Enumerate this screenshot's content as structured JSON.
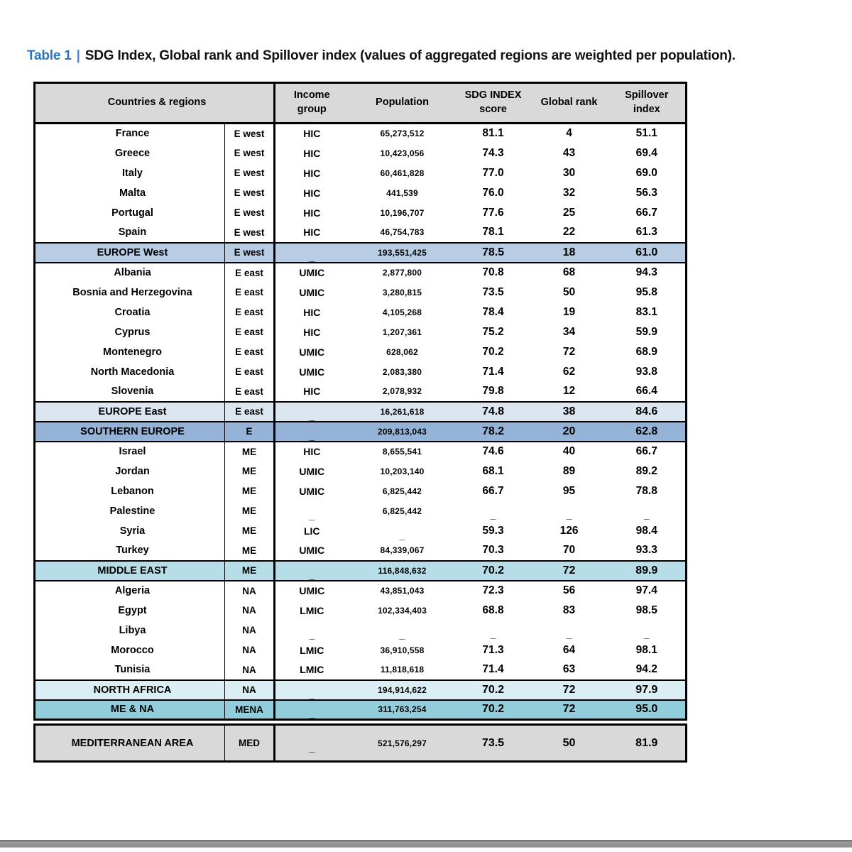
{
  "title": {
    "label": "Table 1",
    "separator": "|",
    "text": "SDG Index, Global rank and Spillover index (values of aggregated regions are weighted per population)."
  },
  "colors": {
    "header_bg": "#d9d9d9",
    "europe_west_bg": "#b8cce4",
    "europe_east_bg": "#dce6f1",
    "southern_europe_bg": "#95b3d7",
    "middle_east_bg": "#b7dee8",
    "north_africa_bg": "#daeef3",
    "mena_bg": "#92cddc",
    "mediterranean_bg": "#d9d9d9",
    "title_accent": "#2e75b6"
  },
  "table": {
    "headers": {
      "countries": "Countries & regions",
      "income": "Income\ngroup",
      "population": "Population",
      "sdg": "SDG INDEX\nscore",
      "rank": "Global rank",
      "spillover": "Spillover\nindex"
    },
    "rows": [
      {
        "name": "France",
        "region": "E west",
        "income": "HIC",
        "population": "65,273,512",
        "score": "81.1",
        "rank": "4",
        "spillover": "51.1",
        "type": "country",
        "block": "main"
      },
      {
        "name": "Greece",
        "region": "E west",
        "income": "HIC",
        "population": "10,423,056",
        "score": "74.3",
        "rank": "43",
        "spillover": "69.4",
        "type": "country",
        "block": "main"
      },
      {
        "name": "Italy",
        "region": "E west",
        "income": "HIC",
        "population": "60,461,828",
        "score": "77.0",
        "rank": "30",
        "spillover": "69.0",
        "type": "country",
        "block": "main"
      },
      {
        "name": "Malta",
        "region": "E west",
        "income": "HIC",
        "population": "441,539",
        "score": "76.0",
        "rank": "32",
        "spillover": "56.3",
        "type": "country",
        "block": "main"
      },
      {
        "name": "Portugal",
        "region": "E west",
        "income": "HIC",
        "population": "10,196,707",
        "score": "77.6",
        "rank": "25",
        "spillover": "66.7",
        "type": "country",
        "block": "main"
      },
      {
        "name": "Spain",
        "region": "E west",
        "income": "HIC",
        "population": "46,754,783",
        "score": "78.1",
        "rank": "22",
        "spillover": "61.3",
        "type": "country",
        "block": "main"
      },
      {
        "name": "EUROPE West",
        "region": "E west",
        "income": "_",
        "population": "193,551,425",
        "score": "78.5",
        "rank": "18",
        "spillover": "61.0",
        "type": "summary",
        "bg": "#b8cce4",
        "block": "main"
      },
      {
        "name": "Albania",
        "region": "E east",
        "income": "UMIC",
        "population": "2,877,800",
        "score": "70.8",
        "rank": "68",
        "spillover": "94.3",
        "type": "country",
        "block": "main"
      },
      {
        "name": "Bosnia and Herzegovina",
        "region": "E east",
        "income": "UMIC",
        "population": "3,280,815",
        "score": "73.5",
        "rank": "50",
        "spillover": "95.8",
        "type": "country",
        "block": "main"
      },
      {
        "name": "Croatia",
        "region": "E east",
        "income": "HIC",
        "population": "4,105,268",
        "score": "78.4",
        "rank": "19",
        "spillover": "83.1",
        "type": "country",
        "block": "main"
      },
      {
        "name": "Cyprus",
        "region": "E east",
        "income": "HIC",
        "population": "1,207,361",
        "score": "75.2",
        "rank": "34",
        "spillover": "59.9",
        "type": "country",
        "block": "main"
      },
      {
        "name": "Montenegro",
        "region": "E east",
        "income": "UMIC",
        "population": "628,062",
        "score": "70.2",
        "rank": "72",
        "spillover": "68.9",
        "type": "country",
        "block": "main"
      },
      {
        "name": "North Macedonia",
        "region": "E east",
        "income": "UMIC",
        "population": "2,083,380",
        "score": "71.4",
        "rank": "62",
        "spillover": "93.8",
        "type": "country",
        "block": "main"
      },
      {
        "name": "Slovenia",
        "region": "E east",
        "income": "HIC",
        "population": "2,078,932",
        "score": "79.8",
        "rank": "12",
        "spillover": "66.4",
        "type": "country",
        "block": "main"
      },
      {
        "name": "EUROPE East",
        "region": "E east",
        "income": "_",
        "population": "16,261,618",
        "score": "74.8",
        "rank": "38",
        "spillover": "84.6",
        "type": "summary",
        "bg": "#dce6f1",
        "block": "main"
      },
      {
        "name": "SOUTHERN EUROPE",
        "region": "E",
        "income": "_",
        "population": "209,813,043",
        "score": "78.2",
        "rank": "20",
        "spillover": "62.8",
        "type": "summary",
        "bg": "#95b3d7",
        "block": "main"
      },
      {
        "name": "Israel",
        "region": "ME",
        "income": "HIC",
        "population": "8,655,541",
        "score": "74.6",
        "rank": "40",
        "spillover": "66.7",
        "type": "country",
        "block": "main"
      },
      {
        "name": "Jordan",
        "region": "ME",
        "income": "UMIC",
        "population": "10,203,140",
        "score": "68.1",
        "rank": "89",
        "spillover": "89.2",
        "type": "country",
        "block": "main"
      },
      {
        "name": "Lebanon",
        "region": "ME",
        "income": "UMIC",
        "population": "6,825,442",
        "score": "66.7",
        "rank": "95",
        "spillover": "78.8",
        "type": "country",
        "block": "main"
      },
      {
        "name": "Palestine",
        "region": "ME",
        "income": "_",
        "population": "6,825,442",
        "score": "_",
        "rank": "_",
        "spillover": "_",
        "type": "country",
        "block": "main"
      },
      {
        "name": "Syria",
        "region": "ME",
        "income": "LIC",
        "population": "_",
        "score": "59.3",
        "rank": "126",
        "spillover": "98.4",
        "type": "country",
        "block": "main"
      },
      {
        "name": "Turkey",
        "region": "ME",
        "income": "UMIC",
        "population": "84,339,067",
        "score": "70.3",
        "rank": "70",
        "spillover": "93.3",
        "type": "country",
        "block": "main"
      },
      {
        "name": "MIDDLE EAST",
        "region": "ME",
        "income": "_",
        "population": "116,848,632",
        "score": "70.2",
        "rank": "72",
        "spillover": "89.9",
        "type": "summary",
        "bg": "#b7dee8",
        "block": "main"
      },
      {
        "name": "Algeria",
        "region": "NA",
        "income": "UMIC",
        "population": "43,851,043",
        "score": "72.3",
        "rank": "56",
        "spillover": "97.4",
        "type": "country",
        "block": "main"
      },
      {
        "name": "Egypt",
        "region": "NA",
        "income": "LMIC",
        "population": "102,334,403",
        "score": "68.8",
        "rank": "83",
        "spillover": "98.5",
        "type": "country",
        "block": "main"
      },
      {
        "name": "Libya",
        "region": "NA",
        "income": "_",
        "population": "_",
        "score": "_",
        "rank": "_",
        "spillover": "_",
        "type": "country",
        "block": "main"
      },
      {
        "name": "Morocco",
        "region": "NA",
        "income": "LMIC",
        "population": "36,910,558",
        "score": "71.3",
        "rank": "64",
        "spillover": "98.1",
        "type": "country",
        "block": "main"
      },
      {
        "name": "Tunisia",
        "region": "NA",
        "income": "LMIC",
        "population": "11,818,618",
        "score": "71.4",
        "rank": "63",
        "spillover": "94.2",
        "type": "country",
        "block": "main"
      },
      {
        "name": "NORTH AFRICA",
        "region": "NA",
        "income": "_",
        "population": "194,914,622",
        "score": "70.2",
        "rank": "72",
        "spillover": "97.9",
        "type": "summary",
        "bg": "#daeef3",
        "block": "main"
      },
      {
        "name": "ME & NA",
        "region": "MENA",
        "income": "_",
        "population": "311,763,254",
        "score": "70.2",
        "rank": "72",
        "spillover": "95.0",
        "type": "summary",
        "bg": "#92cddc",
        "block": "main"
      },
      {
        "name": "MEDITERRANEAN AREA",
        "region": "MED",
        "income": "_",
        "population": "521,576,297",
        "score": "73.5",
        "rank": "50",
        "spillover": "81.9",
        "type": "summary",
        "bg": "#d9d9d9",
        "block": "med"
      }
    ]
  }
}
